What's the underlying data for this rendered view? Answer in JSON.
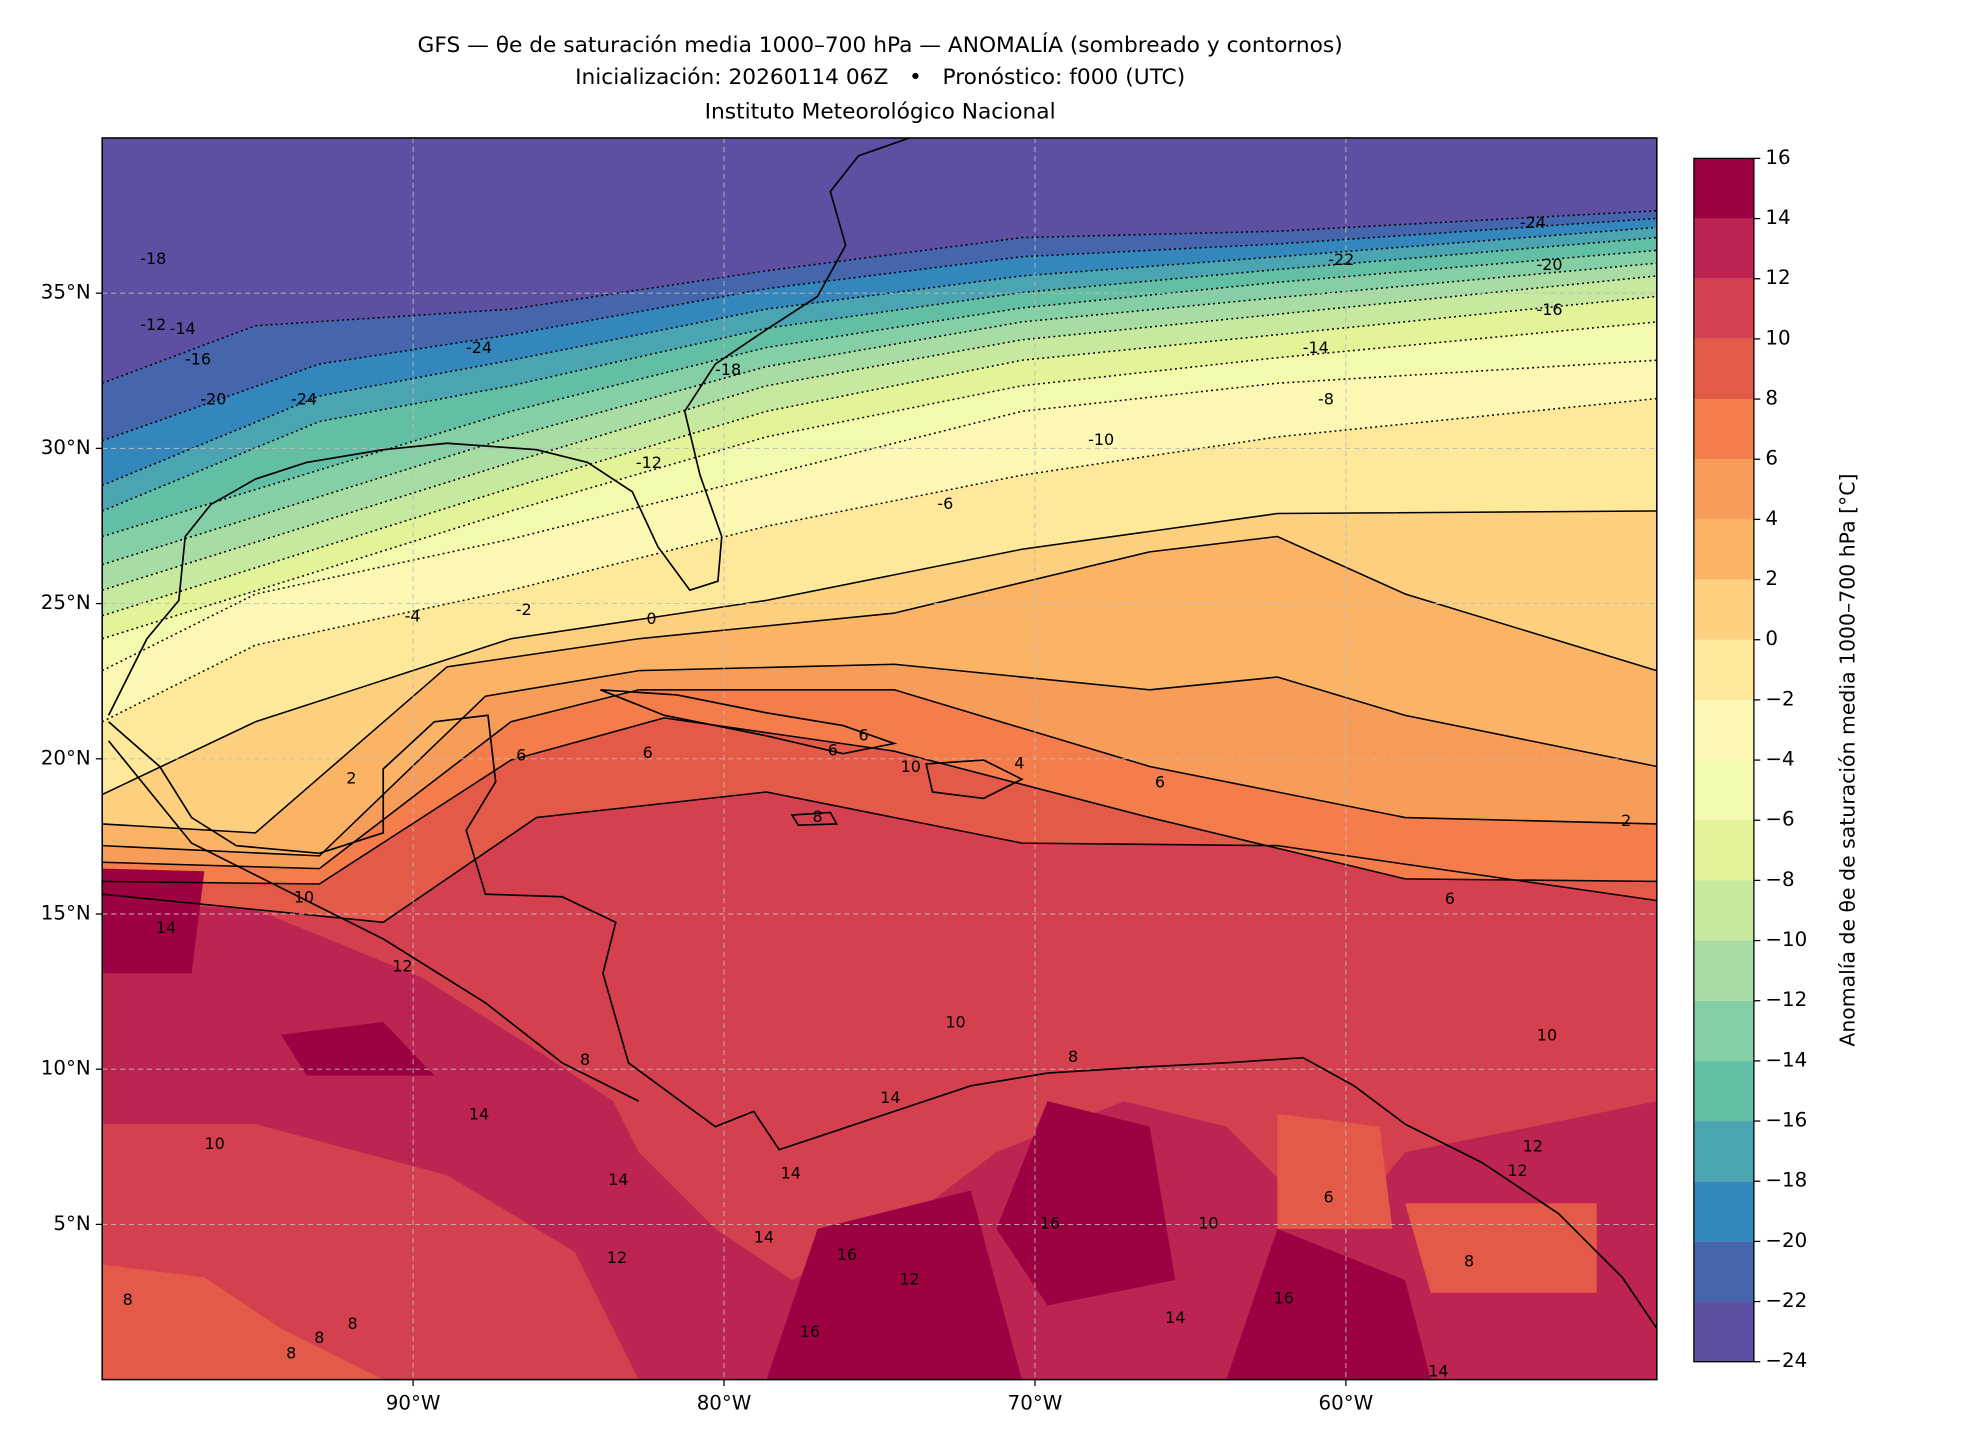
{
  "chart_data": {
    "type": "map",
    "title": "GFS — θe de saturación media 1000–700 hPa — ANOMALÍA (sombreado y contornos)",
    "subtitle": "Inicialización: 20260114 06Z   •   Pronóstico: f000 (UTC)",
    "source": "Instituto Meteorológico Nacional",
    "xlim": [
      -100,
      -50
    ],
    "ylim": [
      0,
      40
    ],
    "xticks": [
      {
        "value": -90,
        "label": "90°W"
      },
      {
        "value": -80,
        "label": "80°W"
      },
      {
        "value": -70,
        "label": "70°W"
      },
      {
        "value": -60,
        "label": "60°W"
      }
    ],
    "yticks": [
      {
        "value": 5,
        "label": "5°N"
      },
      {
        "value": 10,
        "label": "10°N"
      },
      {
        "value": 15,
        "label": "15°N"
      },
      {
        "value": 20,
        "label": "20°N"
      },
      {
        "value": 25,
        "label": "25°N"
      },
      {
        "value": 30,
        "label": "30°N"
      },
      {
        "value": 35,
        "label": "35°N"
      }
    ],
    "grid": true,
    "colorbar": {
      "label": "Anomalía de θe de saturación media 1000–700 hPa [°C]",
      "lim": [
        -24,
        16
      ],
      "ticks": [
        {
          "value": -24,
          "label": "−24"
        },
        {
          "value": -22,
          "label": "−22"
        },
        {
          "value": -20,
          "label": "−20"
        },
        {
          "value": -18,
          "label": "−18"
        },
        {
          "value": -16,
          "label": "−16"
        },
        {
          "value": -14,
          "label": "−14"
        },
        {
          "value": -12,
          "label": "−12"
        },
        {
          "value": -10,
          "label": "−10"
        },
        {
          "value": -8,
          "label": "−8"
        },
        {
          "value": -6,
          "label": "−6"
        },
        {
          "value": -4,
          "label": "−4"
        },
        {
          "value": -2,
          "label": "−2"
        },
        0,
        2,
        4,
        6,
        8,
        10,
        12,
        14,
        16
      ],
      "colors": [
        "#5e4fa2",
        "#4565ac",
        "#3487bc",
        "#4ba4b1",
        "#63bea6",
        "#84cfa5",
        "#a7dca4",
        "#c7e89f",
        "#e2f398",
        "#f3faad",
        "#fcf8b4",
        "#fee89a",
        "#fdd07f",
        "#fbb466",
        "#f89c5a",
        "#f47d4b",
        "#e45a48",
        "#d5404e",
        "#be2451",
        "#9e0142"
      ]
    },
    "contour_labels": [
      -24,
      -22,
      -20,
      -16,
      -14,
      -8,
      -10,
      -6,
      -12,
      -4,
      -2,
      0,
      -18,
      -12,
      -14,
      -16,
      -20,
      -24,
      -24,
      -18,
      2,
      6,
      6,
      6,
      6,
      10,
      4,
      8,
      6,
      2,
      6,
      10,
      14,
      10,
      12,
      14,
      10,
      14,
      12,
      14,
      16,
      10,
      6,
      12,
      12,
      8,
      8,
      16,
      14,
      14,
      8,
      8,
      8,
      8,
      16,
      12,
      14,
      14,
      8,
      16,
      10
    ]
  }
}
